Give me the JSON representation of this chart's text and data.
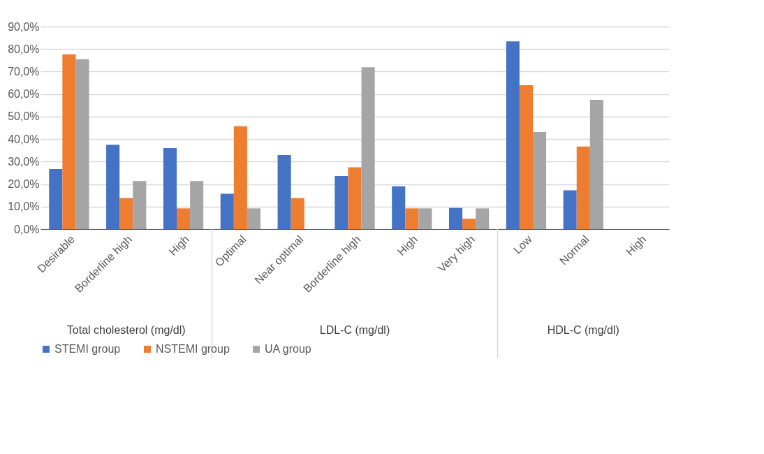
{
  "chart_data": {
    "type": "bar",
    "categories": [
      "Desirable",
      "Borderline high",
      "High",
      "Optimal",
      "Near optimal",
      "Borderline high",
      "High",
      "Very high",
      "Low",
      "Normal",
      "High"
    ],
    "series": [
      {
        "name": "STEMI group",
        "color": "#4472c4",
        "values": [
          26.7,
          37.5,
          36.0,
          15.7,
          32.9,
          23.6,
          19.0,
          9.4,
          83.4,
          17.2,
          0
        ]
      },
      {
        "name": "NSTEMI group",
        "color": "#ed7d31",
        "values": [
          77.7,
          13.8,
          9.2,
          45.7,
          13.8,
          27.5,
          9.2,
          4.6,
          63.9,
          36.7,
          0
        ]
      },
      {
        "name": "UA group",
        "color": "#a5a5a5",
        "values": [
          75.5,
          21.3,
          21.3,
          9.2,
          0,
          71.9,
          9.2,
          9.2,
          43.1,
          57.4,
          0
        ]
      }
    ],
    "ylim": [
      0,
      90
    ],
    "yticks": [
      {
        "value": 0,
        "label": "0,0%"
      },
      {
        "value": 10,
        "label": "10,0%"
      },
      {
        "value": 20,
        "label": "20,0%"
      },
      {
        "value": 30,
        "label": "30,0%"
      },
      {
        "value": 40,
        "label": "40,0%"
      },
      {
        "value": 50,
        "label": "50,0%"
      },
      {
        "value": 60,
        "label": "60,0%"
      },
      {
        "value": 70,
        "label": "70,0%"
      },
      {
        "value": 80,
        "label": "80,0%"
      },
      {
        "value": 90,
        "label": "90,0%"
      }
    ],
    "annotations": [
      "Total cholesterol (mg/dl)",
      "LDL-C (mg/dl)",
      "HDL-C (mg/dl)"
    ],
    "grid": "y",
    "legend": "bottom"
  }
}
